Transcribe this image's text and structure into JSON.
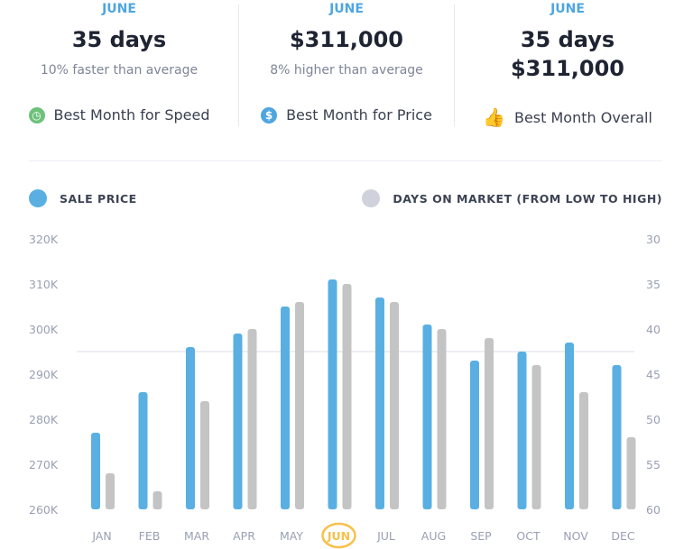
{
  "summary": [
    {
      "month": "JUNE",
      "value": "35 days",
      "value2": "",
      "subtitle": "10% faster than average",
      "badge": "Best Month for Speed",
      "icon": "clock-icon",
      "icon_color": "#6cc27a"
    },
    {
      "month": "JUNE",
      "value": "$311,000",
      "value2": "",
      "subtitle": "8% higher than average",
      "badge": "Best Month for Price",
      "icon": "dollar-icon",
      "icon_color": "#4ea6e0"
    },
    {
      "month": "JUNE",
      "value": "35 days",
      "value2": "$311,000",
      "subtitle": "",
      "badge": "Best Month Overall",
      "icon": "thumbs-up-icon",
      "icon_color": "#f8c04a"
    }
  ],
  "colors": {
    "sale_price": "#5aafe2",
    "days_on_market": "#c4c4c4",
    "highlight": "#f8c04a",
    "axis_text": "#9aa0b4"
  },
  "chart_data": {
    "type": "bar",
    "categories": [
      "JAN",
      "FEB",
      "MAR",
      "APR",
      "MAY",
      "JUN",
      "JUL",
      "AUG",
      "SEP",
      "OCT",
      "NOV",
      "DEC"
    ],
    "highlighted_category": "JUN",
    "series": [
      {
        "name": "SALE PRICE",
        "axis": "left",
        "values": [
          277000,
          286000,
          296000,
          299000,
          305000,
          311000,
          307000,
          301000,
          293000,
          295000,
          297000,
          292000
        ]
      },
      {
        "name": "DAYS ON MARKET (FROM LOW TO HIGH)",
        "axis": "right",
        "values": [
          56,
          58,
          48,
          40,
          37,
          35,
          37,
          40,
          41,
          44,
          47,
          52
        ]
      }
    ],
    "left_axis": {
      "ylim": [
        260000,
        320000
      ],
      "ticks": [
        "320K",
        "310K",
        "300K",
        "290K",
        "280K",
        "270K",
        "260K"
      ]
    },
    "right_axis": {
      "ylim": [
        60,
        30
      ],
      "inverted": true,
      "ticks": [
        "30",
        "35",
        "40",
        "45",
        "50",
        "55",
        "60"
      ]
    },
    "reference_line": 295000,
    "grid": false,
    "legend": "top"
  }
}
